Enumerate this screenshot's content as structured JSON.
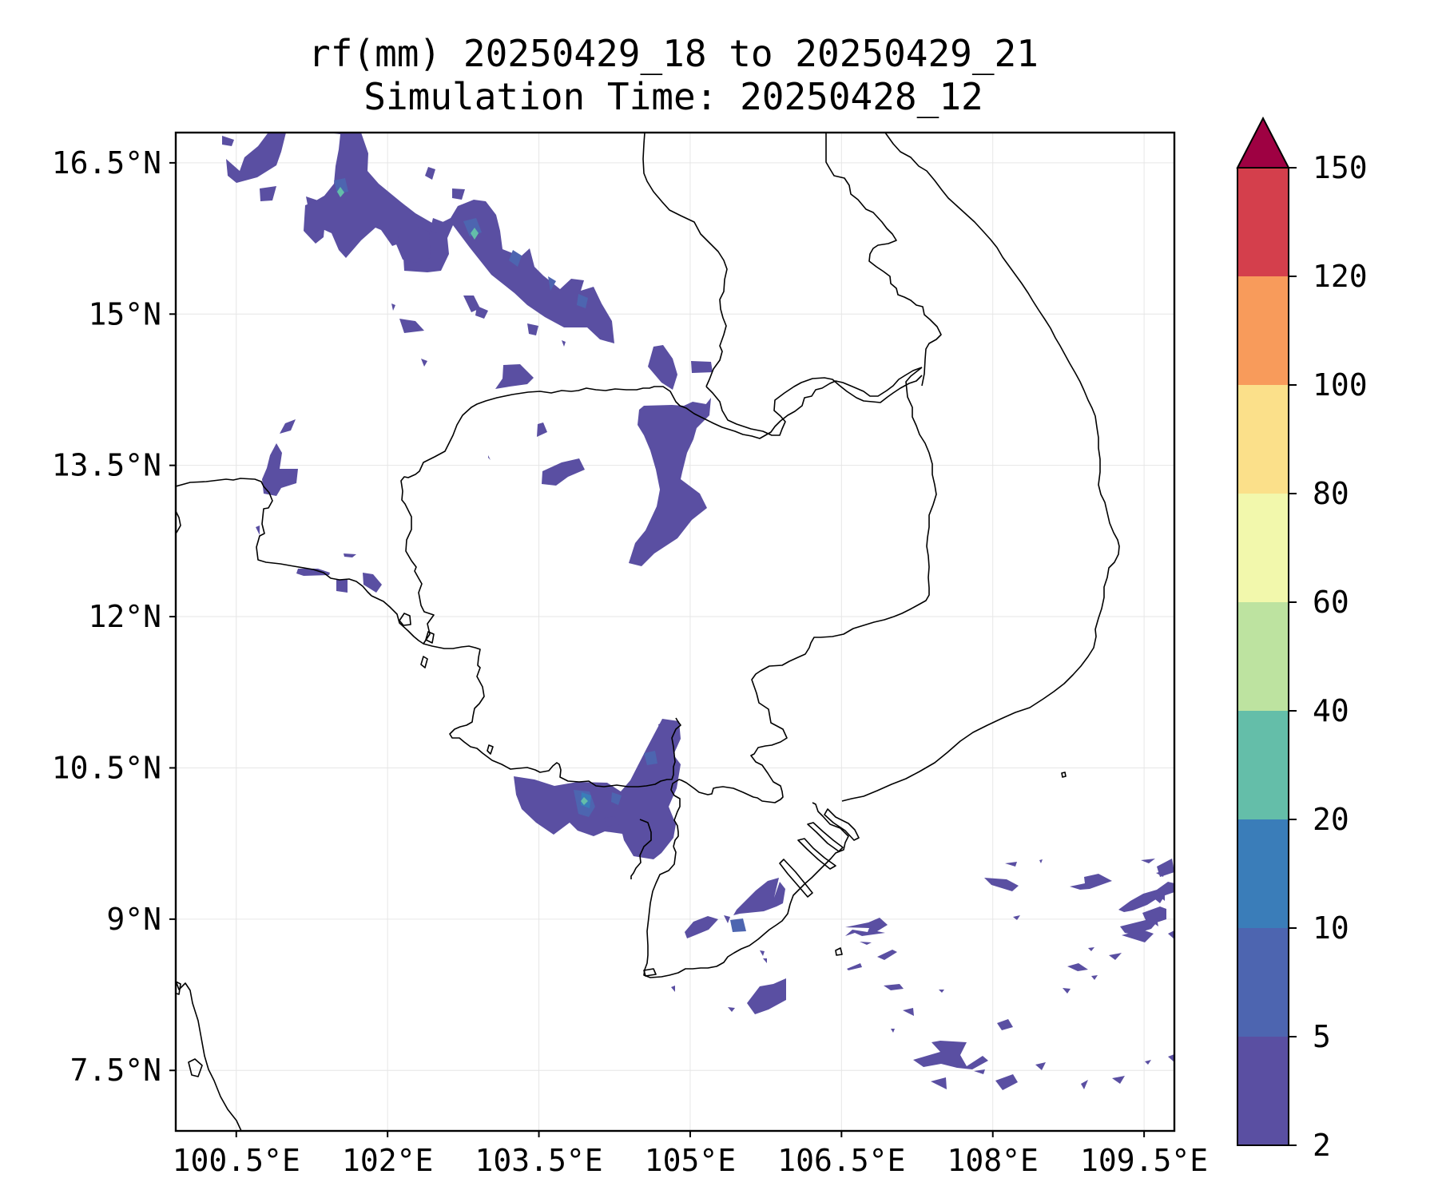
{
  "title": {
    "line1": "rf(mm) 20250429_18 to 20250429_21",
    "line2": "Simulation Time: 20250428_12"
  },
  "map": {
    "lon_range": [
      99.9,
      109.8
    ],
    "lat_range": [
      6.9,
      16.8
    ],
    "lon_ticks": [
      {
        "value": 100.5,
        "label": "100.5°E"
      },
      {
        "value": 102,
        "label": "102°E"
      },
      {
        "value": 103.5,
        "label": "103.5°E"
      },
      {
        "value": 105,
        "label": "105°E"
      },
      {
        "value": 106.5,
        "label": "106.5°E"
      },
      {
        "value": 108,
        "label": "108°E"
      },
      {
        "value": 109.5,
        "label": "109.5°E"
      }
    ],
    "lat_ticks": [
      {
        "value": 16.5,
        "label": "16.5°N"
      },
      {
        "value": 15,
        "label": "15°N"
      },
      {
        "value": 13.5,
        "label": "13.5°N"
      },
      {
        "value": 12,
        "label": "12°N"
      },
      {
        "value": 10.5,
        "label": "10.5°N"
      },
      {
        "value": 9,
        "label": "9°N"
      },
      {
        "value": 7.5,
        "label": "7.5°N"
      }
    ],
    "gridlines": true
  },
  "colorbar": {
    "levels": [
      "2",
      "5",
      "10",
      "20",
      "40",
      "60",
      "80",
      "100",
      "120",
      "150"
    ],
    "colors": [
      "#5a4fa2",
      "#4d65b0",
      "#3a7db9",
      "#64bea9",
      "#bde3a0",
      "#f2f8ac",
      "#fbe08a",
      "#f89b5b",
      "#d43f4c",
      "#9e0142"
    ],
    "extend": "max"
  }
}
